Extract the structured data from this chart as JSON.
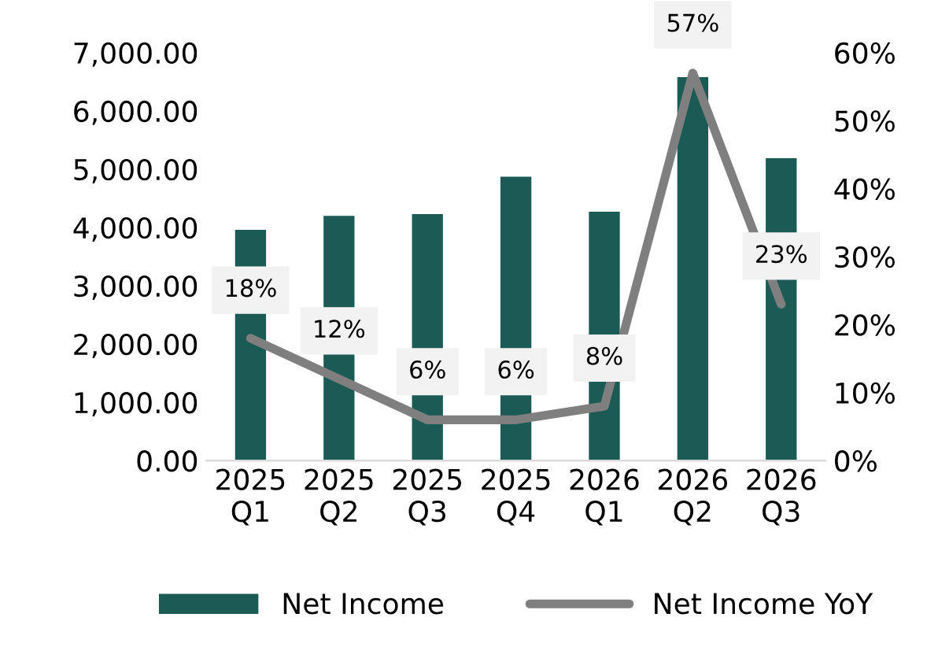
{
  "chart_data": {
    "type": "bar",
    "categories": [
      "2025\nQ1",
      "2025\nQ2",
      "2025\nQ3",
      "2025\nQ4",
      "2026\nQ1",
      "2026\nQ2",
      "2026\nQ3"
    ],
    "series": [
      {
        "name": "Net Income",
        "color": "#1b5a55",
        "values": [
          3960,
          4200,
          4230,
          4870,
          4270,
          6580,
          5190
        ]
      },
      {
        "name": "Net Income YoY",
        "type": "line",
        "axis": "y2",
        "color": "#7f7f7f",
        "values": [
          18,
          12,
          6,
          6,
          8,
          57,
          23
        ],
        "value_labels": [
          "18%",
          "12%",
          "6%",
          "6%",
          "8%",
          "57%",
          "23%"
        ]
      }
    ],
    "ylim": [
      0,
      7000
    ],
    "yticks": [
      {
        "value": 0,
        "label": "0.00"
      },
      {
        "value": 1000,
        "label": "1,000.00"
      },
      {
        "value": 2000,
        "label": "2,000.00"
      },
      {
        "value": 3000,
        "label": "3,000.00"
      },
      {
        "value": 4000,
        "label": "4,000.00"
      },
      {
        "value": 5000,
        "label": "5,000.00"
      },
      {
        "value": 6000,
        "label": "6,000.00"
      },
      {
        "value": 7000,
        "label": "7,000.00"
      }
    ],
    "y2lim": [
      0,
      60
    ],
    "y2ticks": [
      {
        "value": 0,
        "label": "0%"
      },
      {
        "value": 10,
        "label": "10%"
      },
      {
        "value": 20,
        "label": "20%"
      },
      {
        "value": 30,
        "label": "30%"
      },
      {
        "value": 40,
        "label": "40%"
      },
      {
        "value": 50,
        "label": "50%"
      },
      {
        "value": 60,
        "label": "60%"
      }
    ],
    "grid": false,
    "legend": "bottom",
    "marker": "none",
    "line_style": "solid"
  }
}
